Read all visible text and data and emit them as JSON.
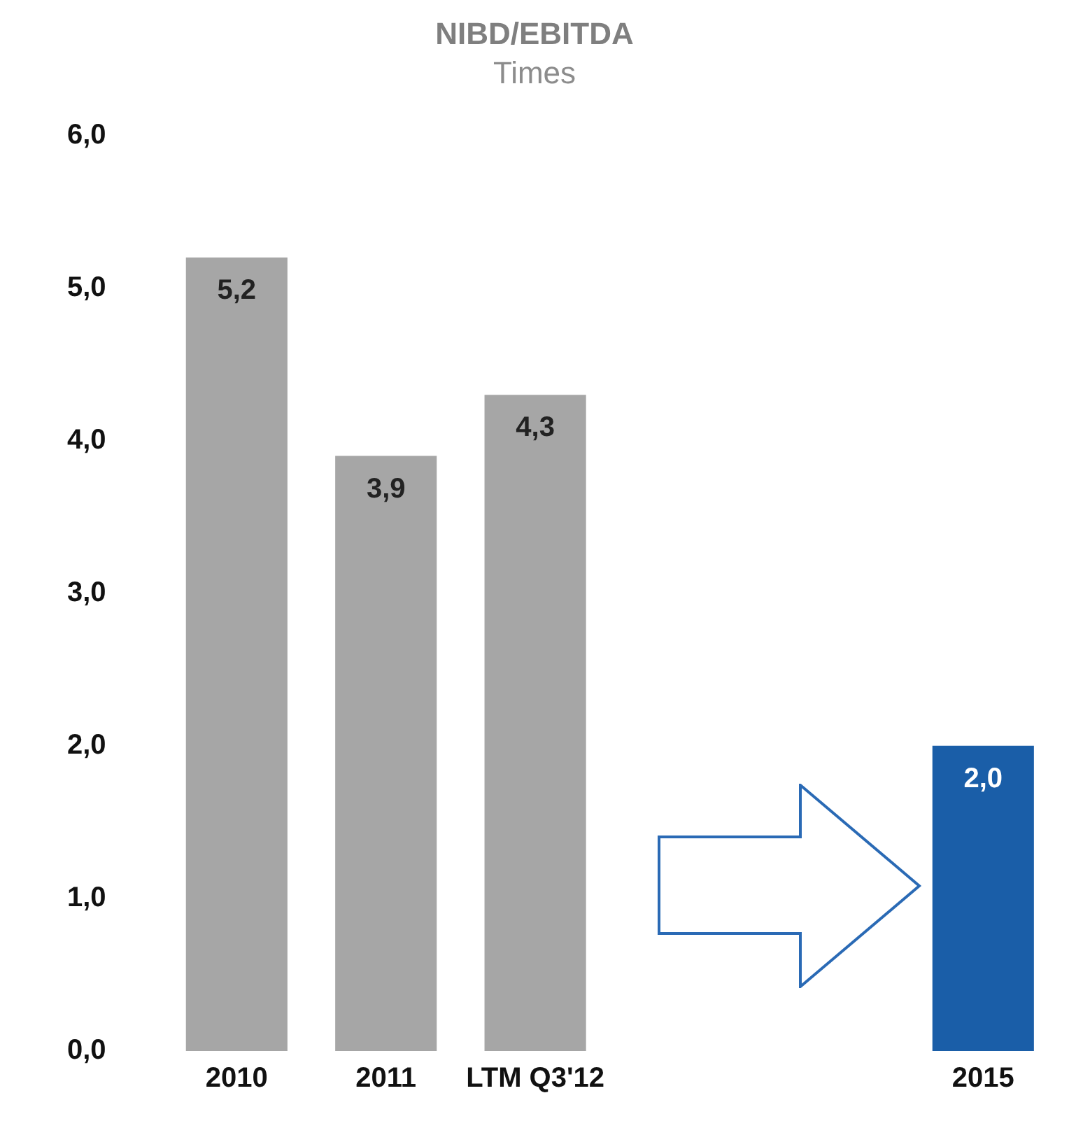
{
  "chart_data": {
    "type": "bar",
    "title": "NIBD/EBITDA",
    "subtitle": "Times",
    "categories": [
      "2010",
      "2011",
      "LTM Q3'12",
      null,
      null,
      "2015"
    ],
    "values": [
      5.2,
      3.9,
      4.3,
      null,
      null,
      2.0
    ],
    "colors": [
      "#a6a6a6",
      "#a6a6a6",
      "#a6a6a6",
      "#a6a6a6",
      "#a6a6a6",
      "#1a5ea8"
    ],
    "value_labels": [
      "5,2",
      "3,9",
      "4,3",
      null,
      null,
      "2,0"
    ],
    "ylim": [
      0,
      6
    ],
    "yticks": [
      {
        "value": 0,
        "label": "0,0"
      },
      {
        "value": 1,
        "label": "1,0"
      },
      {
        "value": 2,
        "label": "2,0"
      },
      {
        "value": 3,
        "label": "3,0"
      },
      {
        "value": 4,
        "label": "4,0"
      },
      {
        "value": 5,
        "label": "5,0"
      },
      {
        "value": 6,
        "label": "6,0"
      }
    ],
    "grid": false,
    "legend": false
  }
}
